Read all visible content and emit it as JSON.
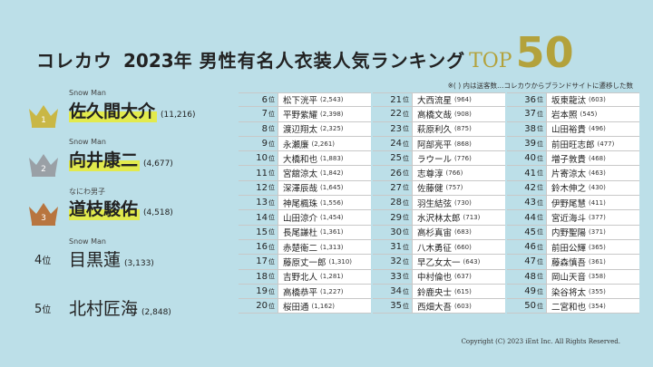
{
  "header": {
    "brand": "コレカウ",
    "year": "2023年",
    "title": "男性有名人衣装人気ランキング",
    "top_label": "TOP",
    "top_number": "50"
  },
  "note": "※( ) 内は送客数…コレカウからブランドサイトに遷移した数",
  "colors": {
    "background": "#bcdfe8",
    "gold": "#b3a23c",
    "highlight": "#e2ea4d",
    "crown_gold": "#c9b745",
    "crown_silver": "#9aa0a6",
    "crown_bronze": "#b8753f"
  },
  "top5": [
    {
      "rank": "1",
      "sub": "Snow Man",
      "name": "佐久間大介",
      "count": "(11,216)",
      "icon": "gold-crown-icon"
    },
    {
      "rank": "2",
      "sub": "Snow Man",
      "name": "向井康二",
      "count": "(4,677)",
      "icon": "silver-crown-icon"
    },
    {
      "rank": "3",
      "sub": "なにわ男子",
      "name": "道枝駿佑",
      "count": "(4,518)",
      "icon": "bronze-crown-icon"
    },
    {
      "rank": "4",
      "unit": "位",
      "sub": "Snow Man",
      "name": "目黒蓮",
      "count": "(3,133)"
    },
    {
      "rank": "5",
      "unit": "位",
      "sub": "",
      "name": "北村匠海",
      "count": "(2,848)"
    }
  ],
  "rank_unit": "位",
  "columns": [
    [
      {
        "rank": "6",
        "name": "松下洸平",
        "count": "(2,543)"
      },
      {
        "rank": "7",
        "name": "平野紫耀",
        "count": "(2,398)"
      },
      {
        "rank": "8",
        "name": "渡辺翔太",
        "count": "(2,325)"
      },
      {
        "rank": "9",
        "name": "永瀬廉",
        "count": "(2,261)"
      },
      {
        "rank": "10",
        "name": "大橋和也",
        "count": "(1,883)"
      },
      {
        "rank": "11",
        "name": "宮舘涼太",
        "count": "(1,842)"
      },
      {
        "rank": "12",
        "name": "深澤辰哉",
        "count": "(1,645)"
      },
      {
        "rank": "13",
        "name": "神尾楓珠",
        "count": "(1,556)"
      },
      {
        "rank": "14",
        "name": "山田涼介",
        "count": "(1,454)"
      },
      {
        "rank": "15",
        "name": "長尾謙杜",
        "count": "(1,361)"
      },
      {
        "rank": "16",
        "name": "赤楚衛二",
        "count": "(1,313)"
      },
      {
        "rank": "17",
        "name": "藤原丈一郎",
        "count": "(1,310)"
      },
      {
        "rank": "18",
        "name": "吉野北人",
        "count": "(1,281)"
      },
      {
        "rank": "19",
        "name": "高橋恭平",
        "count": "(1,227)"
      },
      {
        "rank": "20",
        "name": "桜田通",
        "count": "(1,162)"
      }
    ],
    [
      {
        "rank": "21",
        "name": "大西流星",
        "count": "(964)"
      },
      {
        "rank": "22",
        "name": "高橋文哉",
        "count": "(908)"
      },
      {
        "rank": "23",
        "name": "萩原利久",
        "count": "(875)"
      },
      {
        "rank": "24",
        "name": "阿部亮平",
        "count": "(868)"
      },
      {
        "rank": "25",
        "name": "ラウール",
        "count": "(776)"
      },
      {
        "rank": "26",
        "name": "志尊淳",
        "count": "(766)"
      },
      {
        "rank": "27",
        "name": "佐藤健",
        "count": "(757)"
      },
      {
        "rank": "28",
        "name": "羽生結弦",
        "count": "(730)"
      },
      {
        "rank": "29",
        "name": "水沢林太郎",
        "count": "(713)"
      },
      {
        "rank": "30",
        "name": "高杉真宙",
        "count": "(683)"
      },
      {
        "rank": "31",
        "name": "八木勇征",
        "count": "(660)"
      },
      {
        "rank": "32",
        "name": "早乙女太一",
        "count": "(643)"
      },
      {
        "rank": "33",
        "name": "中村倫也",
        "count": "(637)"
      },
      {
        "rank": "34",
        "name": "鈴鹿央士",
        "count": "(615)"
      },
      {
        "rank": "35",
        "name": "西畑大吾",
        "count": "(603)"
      }
    ],
    [
      {
        "rank": "36",
        "name": "坂東龍汰",
        "count": "(603)"
      },
      {
        "rank": "37",
        "name": "岩本照",
        "count": "(545)"
      },
      {
        "rank": "38",
        "name": "山田裕貴",
        "count": "(496)"
      },
      {
        "rank": "39",
        "name": "前田旺志郎",
        "count": "(477)"
      },
      {
        "rank": "40",
        "name": "増子敦貴",
        "count": "(468)"
      },
      {
        "rank": "41",
        "name": "片寄涼太",
        "count": "(463)"
      },
      {
        "rank": "42",
        "name": "鈴木伸之",
        "count": "(430)"
      },
      {
        "rank": "43",
        "name": "伊野尾慧",
        "count": "(411)"
      },
      {
        "rank": "44",
        "name": "宮近海斗",
        "count": "(377)"
      },
      {
        "rank": "45",
        "name": "内野聖陽",
        "count": "(371)"
      },
      {
        "rank": "46",
        "name": "前田公輝",
        "count": "(365)"
      },
      {
        "rank": "47",
        "name": "藤森慎吾",
        "count": "(361)"
      },
      {
        "rank": "48",
        "name": "岡山天音",
        "count": "(358)"
      },
      {
        "rank": "49",
        "name": "染谷将太",
        "count": "(355)"
      },
      {
        "rank": "50",
        "name": "二宮和也",
        "count": "(354)"
      }
    ]
  ],
  "copyright": "Copyright (C) 2023 iEnt Inc. All Rights Reserved."
}
